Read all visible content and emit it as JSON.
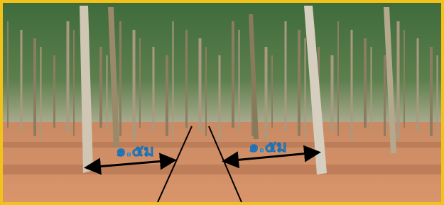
{
  "annotations": [
    {
      "label": "๑.๕ม"
    },
    {
      "label": "๑.๕ม"
    }
  ]
}
